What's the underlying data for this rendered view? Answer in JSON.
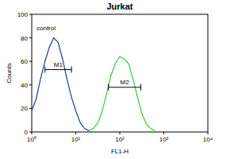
{
  "chart_data": {
    "type": "line",
    "title": "Jurkat",
    "x_label": "FL1-H",
    "y_label": "Counts",
    "log": "x",
    "xlim": [
      1,
      10000
    ],
    "xticks": [
      {
        "value": 1,
        "label": "10⁰"
      },
      {
        "value": 10,
        "label": "10¹"
      },
      {
        "value": 100,
        "label": "10²"
      },
      {
        "value": 1000,
        "label": "10³"
      },
      {
        "value": 10000,
        "label": "10⁴"
      }
    ],
    "ylim": [
      0,
      100
    ],
    "yticks": [
      0,
      20,
      40,
      60,
      80,
      100
    ],
    "series": [
      {
        "name": "control",
        "color": "#1f3a9a",
        "x": [
          1,
          1.26,
          1.58,
          2,
          2.51,
          3.16,
          3.98,
          5.01,
          6.31,
          7.94,
          10,
          12.6,
          15.8,
          20
        ],
        "values": [
          18,
          28,
          45,
          60,
          72,
          80,
          76,
          62,
          45,
          30,
          18,
          8,
          3,
          1
        ]
      },
      {
        "color": "#33cc33",
        "x": [
          20,
          25,
          32,
          40,
          50,
          63,
          79,
          100,
          126,
          158,
          200,
          251,
          316,
          398,
          501,
          631
        ],
        "values": [
          1,
          3,
          8,
          18,
          32,
          48,
          58,
          64,
          62,
          58,
          45,
          30,
          16,
          7,
          3,
          1
        ]
      }
    ],
    "gates": [
      {
        "label": "M1",
        "x": [
          2,
          8
        ],
        "y": 53
      },
      {
        "label": "M2",
        "x": [
          55,
          300
        ],
        "y": 38
      }
    ]
  }
}
